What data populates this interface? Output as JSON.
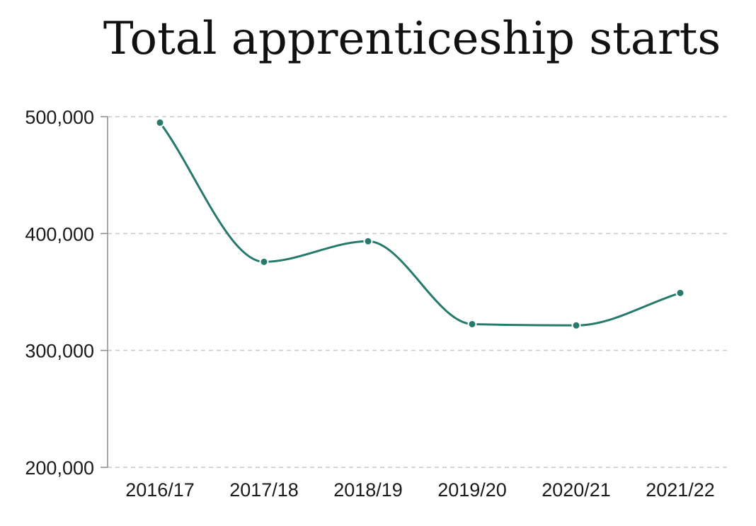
{
  "chart_data": {
    "type": "line",
    "title": "Total apprenticeship starts",
    "xlabel": "",
    "ylabel": "",
    "categories": [
      "2016/17",
      "2017/18",
      "2018/19",
      "2019/20",
      "2020/21",
      "2021/22"
    ],
    "series": [
      {
        "values": [
          494900,
          375800,
          393400,
          322500,
          321400,
          349200
        ]
      }
    ],
    "ylim": [
      200000,
      500000
    ],
    "yticks": [
      200000,
      300000,
      400000,
      500000
    ],
    "ytick_labels": [
      "200,000",
      "300,000",
      "400,000",
      "500,000"
    ],
    "grid": true,
    "smooth": true,
    "legend": "none"
  },
  "colors": {
    "series": "#267a6b",
    "grid": "#c9c9c9",
    "axis": "#8a8a8a"
  }
}
